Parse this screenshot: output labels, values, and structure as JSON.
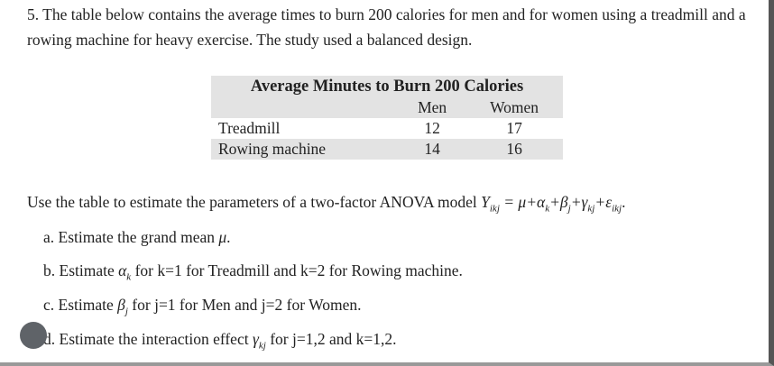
{
  "question": {
    "text": "5. The table below contains the average times to burn 200 calories for men and for women using a treadmill and a rowing machine for heavy exercise. The study used a balanced design."
  },
  "table": {
    "title": "Average Minutes to Burn 200 Calories",
    "columns": [
      "Men",
      "Women"
    ],
    "rows": [
      [
        "Treadmill",
        12,
        17
      ],
      [
        "Rowing machine",
        14,
        16
      ]
    ]
  },
  "prompt": {
    "parts": [
      "Use the table to estimate the parameters of a two-factor ANOVA model ",
      {
        "math": "Y",
        "sub": "ikj"
      },
      {
        "math": " = μ+"
      },
      {
        "math": "α",
        "sub": "k"
      },
      {
        "math": "+"
      },
      {
        "math": "β",
        "sub": "j"
      },
      {
        "math": "+"
      },
      {
        "math": "γ",
        "sub": "kj"
      },
      {
        "math": "+"
      },
      {
        "math": "ε",
        "sub": "ikj"
      },
      "."
    ]
  },
  "items": [
    {
      "parts": [
        "a. Estimate the grand mean ",
        {
          "math": "μ"
        },
        "."
      ]
    },
    {
      "parts": [
        "b. Estimate ",
        {
          "math": "α",
          "sub": "k"
        },
        " for k=1 for Treadmill and k=2 for Rowing machine."
      ]
    },
    {
      "parts": [
        "c. Estimate ",
        {
          "math": "β",
          "sub": "j"
        },
        " for j=1 for Men and j=2 for Women."
      ]
    },
    {
      "parts": [
        "d. Estimate the interaction effect ",
        {
          "math": "γ",
          "sub": "kj"
        },
        " for j=1,2 and k=1,2."
      ]
    }
  ]
}
